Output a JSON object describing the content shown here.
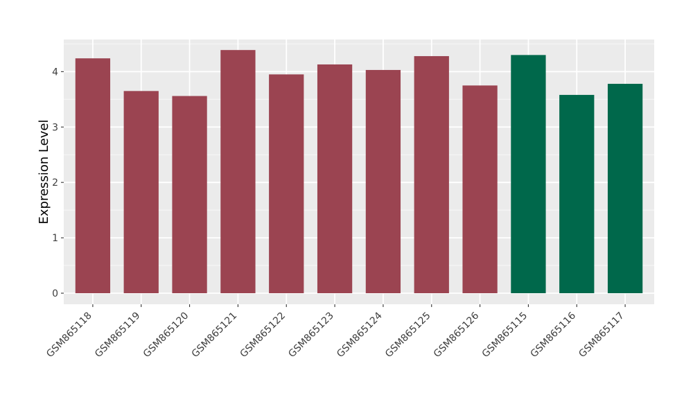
{
  "chart_data": {
    "type": "bar",
    "title": "",
    "xlabel": "",
    "ylabel": "Expression Level",
    "categories": [
      "GSM865118",
      "GSM865119",
      "GSM865120",
      "GSM865121",
      "GSM865122",
      "GSM865123",
      "GSM865124",
      "GSM865125",
      "GSM865126",
      "GSM865115",
      "GSM865116",
      "GSM865117"
    ],
    "values": [
      4.24,
      3.65,
      3.56,
      4.39,
      3.95,
      4.13,
      4.03,
      4.28,
      3.75,
      4.3,
      3.58,
      3.78
    ],
    "bar_colors": [
      "#9B4451",
      "#9B4451",
      "#9B4451",
      "#9B4451",
      "#9B4451",
      "#9B4451",
      "#9B4451",
      "#9B4451",
      "#9B4451",
      "#00684B",
      "#00684B",
      "#00684B"
    ],
    "group_colors": {
      "group1": "#9B4451",
      "group2": "#00684B"
    },
    "yticks": [
      0,
      1,
      2,
      3,
      4
    ],
    "ylim": [
      -0.2,
      4.58
    ],
    "grid": true,
    "legend": "none",
    "panel_background": "#EBEBEB",
    "grid_color": "#FFFFFF",
    "tick_color": "#333333",
    "tick_label_color": "#3D3D3D",
    "axis_title_color": "#000000",
    "x_tick_rotation": -45
  }
}
